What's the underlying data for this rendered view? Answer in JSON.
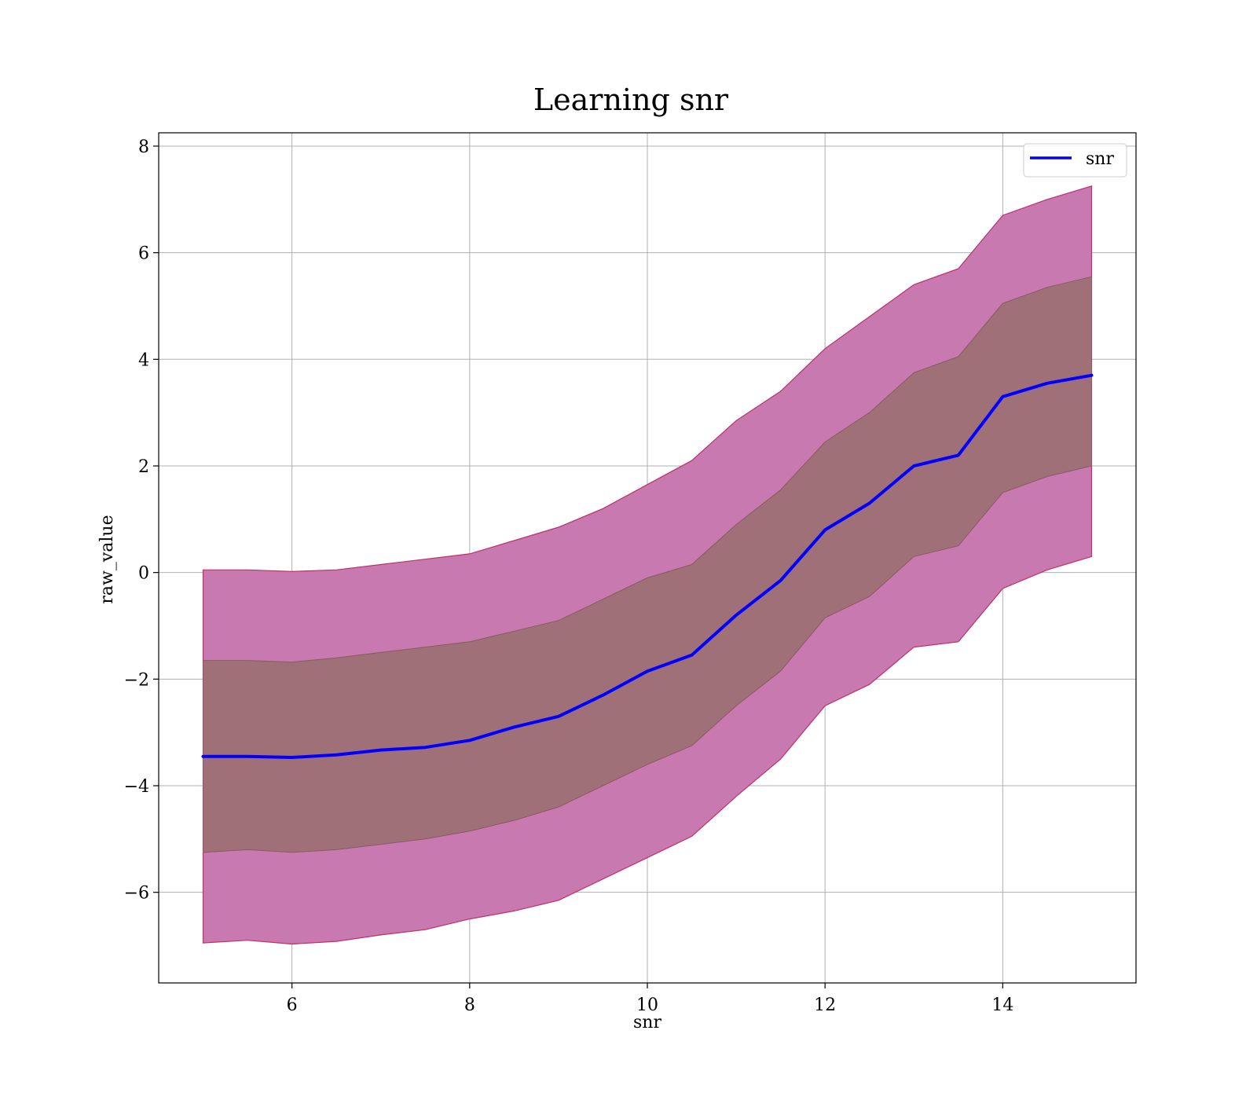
{
  "chart_data": {
    "type": "line",
    "title": "Learning snr",
    "xlabel": "snr",
    "ylabel": "raw_value",
    "xlim": [
      4.5,
      15.5
    ],
    "ylim": [
      -7.7,
      8.25
    ],
    "xticks": [
      6,
      8,
      10,
      12,
      14
    ],
    "yticks": [
      -6,
      -4,
      -2,
      0,
      2,
      4,
      6,
      8
    ],
    "ytick_labels": [
      "−6",
      "−4",
      "−2",
      "0",
      "2",
      "4",
      "6",
      "8"
    ],
    "grid": true,
    "legend": {
      "position": "top-right",
      "entries": [
        "snr"
      ]
    },
    "colors": {
      "line": "#0000ff",
      "outer_band": "#c779b0",
      "inner_band": "#a07078",
      "band_edge": "#c0306a"
    },
    "x": [
      5.0,
      5.5,
      6.0,
      6.5,
      7.0,
      7.5,
      8.0,
      8.5,
      9.0,
      9.5,
      10.0,
      10.5,
      11.0,
      11.5,
      12.0,
      12.5,
      13.0,
      13.5,
      14.0,
      14.5,
      15.0
    ],
    "series": [
      {
        "name": "snr",
        "values": [
          -3.45,
          -3.45,
          -3.47,
          -3.42,
          -3.33,
          -3.28,
          -3.15,
          -2.9,
          -2.7,
          -2.3,
          -1.85,
          -1.55,
          -0.8,
          -0.15,
          0.8,
          1.3,
          2.0,
          2.2,
          3.3,
          3.55,
          3.7
        ]
      }
    ],
    "bands": [
      {
        "level": "outer",
        "lower": [
          -6.95,
          -6.9,
          -6.97,
          -6.92,
          -6.8,
          -6.7,
          -6.5,
          -6.35,
          -6.15,
          -5.75,
          -5.35,
          -4.95,
          -4.2,
          -3.5,
          -2.5,
          -2.1,
          -1.4,
          -1.3,
          -0.3,
          0.05,
          0.3
        ],
        "upper": [
          0.05,
          0.05,
          0.02,
          0.05,
          0.15,
          0.25,
          0.35,
          0.6,
          0.85,
          1.2,
          1.65,
          2.1,
          2.85,
          3.4,
          4.2,
          4.8,
          5.4,
          5.7,
          6.7,
          7.0,
          7.25
        ]
      },
      {
        "level": "inner",
        "lower": [
          -5.25,
          -5.2,
          -5.25,
          -5.2,
          -5.1,
          -5.0,
          -4.85,
          -4.65,
          -4.4,
          -4.0,
          -3.6,
          -3.25,
          -2.5,
          -1.85,
          -0.85,
          -0.45,
          0.3,
          0.5,
          1.5,
          1.8,
          2.0
        ],
        "upper": [
          -1.65,
          -1.65,
          -1.68,
          -1.6,
          -1.5,
          -1.4,
          -1.3,
          -1.1,
          -0.9,
          -0.5,
          -0.1,
          0.15,
          0.9,
          1.55,
          2.45,
          3.0,
          3.75,
          4.05,
          5.05,
          5.35,
          5.55
        ]
      }
    ]
  }
}
